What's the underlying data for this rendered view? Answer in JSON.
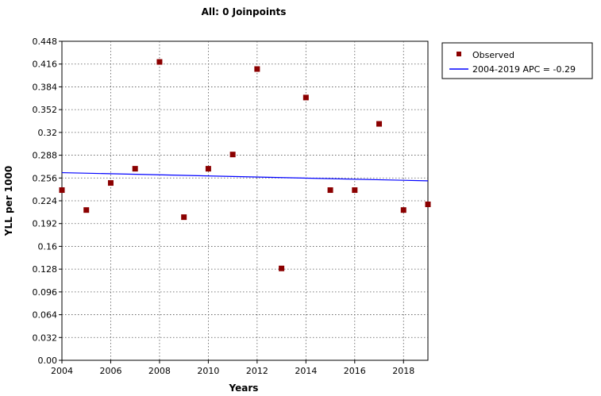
{
  "chart_data": {
    "type": "scatter",
    "title": "All: 0 Joinpoints",
    "xlabel": "Years",
    "ylabel": "YLL per 1000",
    "xlim": [
      2004,
      2019
    ],
    "ylim": [
      0.0,
      0.448
    ],
    "x_ticks": [
      2004,
      2006,
      2008,
      2010,
      2012,
      2014,
      2016,
      2018
    ],
    "y_ticks": [
      "0.00",
      "0.032",
      "0.064",
      "0.096",
      "0.128",
      "0.16",
      "0.192",
      "0.224",
      "0.256",
      "0.288",
      "0.32",
      "0.352",
      "0.384",
      "0.416",
      "0.448"
    ],
    "grid": true,
    "legend_position": "right",
    "series": [
      {
        "name": "Observed",
        "kind": "scatter",
        "color": "#8b0000",
        "x": [
          2004,
          2005,
          2006,
          2007,
          2008,
          2009,
          2010,
          2011,
          2012,
          2013,
          2014,
          2015,
          2016,
          2017,
          2018,
          2019
        ],
        "y": [
          0.239,
          0.211,
          0.249,
          0.269,
          0.419,
          0.201,
          0.269,
          0.289,
          0.409,
          0.129,
          0.369,
          0.239,
          0.239,
          0.332,
          0.211,
          0.219
        ]
      },
      {
        "name": "2004-2019 APC  = -0.29",
        "kind": "line",
        "color": "#0000ff",
        "x": [
          2004,
          2019
        ],
        "y": [
          0.2635,
          0.252
        ]
      }
    ]
  }
}
